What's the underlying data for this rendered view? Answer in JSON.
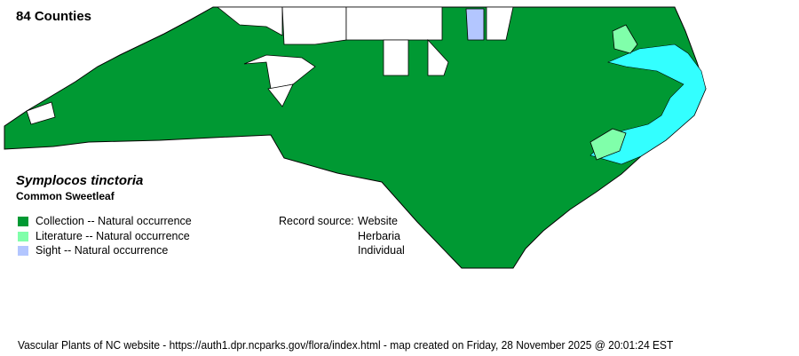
{
  "title": "84 Counties",
  "species": {
    "scientific_name": "Symplocos tinctoria",
    "common_name": "Common Sweetleaf"
  },
  "legend": [
    {
      "label": "Collection -- Natural occurrence",
      "color": "#009933"
    },
    {
      "label": "Literature -- Natural occurrence",
      "color": "#80ffaa"
    },
    {
      "label": "Sight -- Natural occurrence",
      "color": "#b3c6ff"
    }
  ],
  "record_source": {
    "label": "Record source:",
    "values": [
      "Website",
      "Herbaria",
      "Individual"
    ]
  },
  "colors": {
    "water": "#33ffff",
    "absent": "#ffffff",
    "border": "#000000"
  },
  "footer": "Vascular Plants of NC website - https://auth1.dpr.ncparks.gov/flora/index.html - map created on Friday, 28 November 2025 @ 20:01:24 EST"
}
